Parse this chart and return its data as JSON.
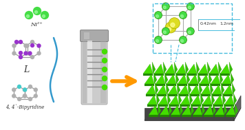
{
  "title_text": "4, 4`-Bipyridine",
  "ni_label": "Ni²⁺",
  "L_label": "L",
  "dim_label1": "0.42nm",
  "dim_label2": "1.2nm",
  "bg_color": "#ffffff",
  "ni_color": "#44dd44",
  "mol_gray": "#b0b0b0",
  "mol_purple": "#9933cc",
  "mol_cyan": "#44cccc",
  "arrow_orange": "#ff9900",
  "bracket_color": "#3399cc",
  "vial_silver": "#bbbbbb",
  "vial_dark": "#888888",
  "vial_light": "#dddddd",
  "green_bright": "#44dd00",
  "green_dark": "#228800",
  "green_mid": "#33bb00",
  "dark_base": "#555555",
  "dashed_color": "#44bbdd",
  "yellow_sphere": "#dddd22",
  "mof_frame": "#aaaaaa"
}
